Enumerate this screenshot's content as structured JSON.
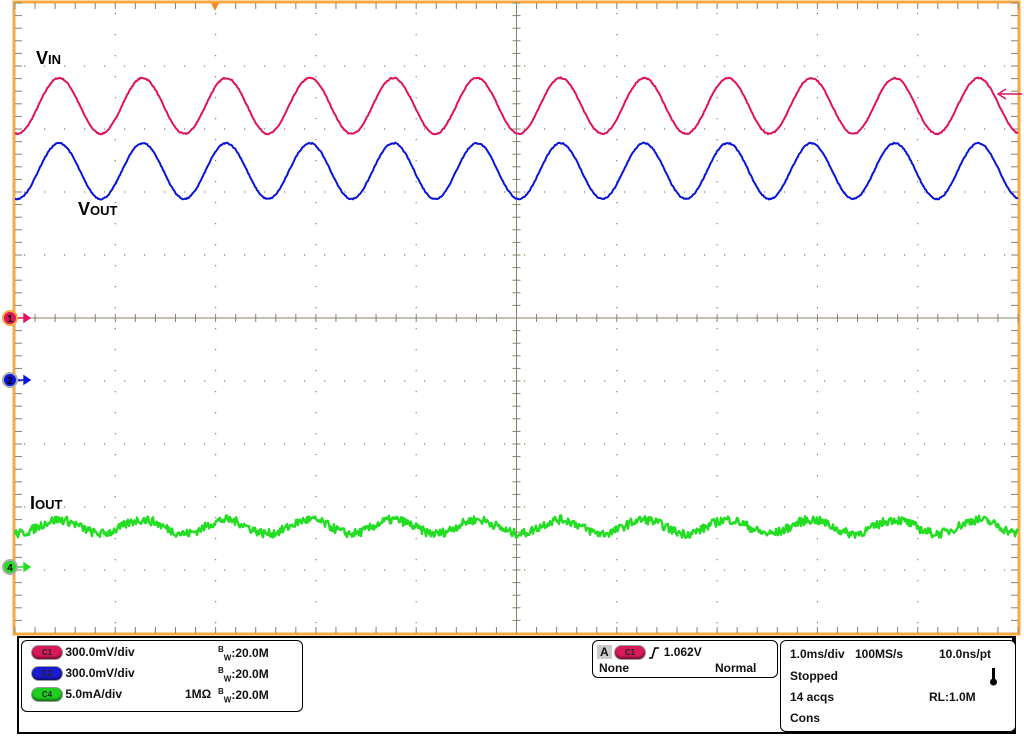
{
  "chart_data": {
    "type": "line",
    "title": "",
    "xlabel": "",
    "ylabel": "",
    "x_unit": "ms",
    "xlim": [
      -5,
      5
    ],
    "grid": true,
    "grid_divisions": {
      "horizontal": 10,
      "vertical": 10
    },
    "series": [
      {
        "name": "VIN",
        "name_main": "V",
        "name_sub": "IN",
        "channel": "1",
        "color": "#e0115f",
        "scale_per_div": 0.3,
        "unit": "V",
        "waveform": "sine",
        "offset": 1.01,
        "amplitude": 0.133,
        "frequency_hz": 1200,
        "peak_time_ms": -4.56,
        "noise": 0.003
      },
      {
        "name": "VOUT",
        "name_main": "V",
        "name_sub": "OUT",
        "channel": "2",
        "color": "#0a14d8",
        "scale_per_div": 0.3,
        "unit": "V",
        "waveform": "sine",
        "offset": 0.995,
        "amplitude": 0.133,
        "frequency_hz": 1200,
        "peak_time_ms": -4.56,
        "noise": 0.003
      },
      {
        "name": "IOUT",
        "name_main": "I",
        "name_sub": "OUT",
        "channel": "4",
        "color": "#22dd22",
        "scale_per_div": 5.0,
        "unit": "mA",
        "waveform": "sine",
        "offset": 3.2,
        "amplitude": 0.55,
        "frequency_hz": 1200,
        "peak_time_ms": -4.56,
        "noise": 0.35
      }
    ]
  },
  "colors": {
    "frame": "#f7a941",
    "grid": "#8a7f6a",
    "trigger_marker": "#f28a1c"
  },
  "channels_panel": {
    "rows": [
      {
        "tag": "C1",
        "color": "#d81a5a",
        "scale": "300.0mV/div",
        "impedance": "",
        "bw_label": "W",
        "bw_prefix": "B",
        "bw": ":20.0M"
      },
      {
        "tag": "C2",
        "color": "#1a1ad0",
        "scale": "300.0mV/div",
        "impedance": "",
        "bw_label": "W",
        "bw_prefix": "B",
        "bw": ":20.0M"
      },
      {
        "tag": "C4",
        "color": "#1fd01f",
        "scale": "5.0mA/div",
        "impedance": "1MΩ",
        "bw_label": "W",
        "bw_prefix": "B",
        "bw": ":20.0M"
      }
    ]
  },
  "trigger_panel": {
    "mode_letter": "A",
    "source": "C1",
    "slope_icon": "rising-edge",
    "level": "1.062V",
    "coupling": "None",
    "mode": "Normal"
  },
  "acquisition_panel": {
    "timebase": "1.0ms/div",
    "sample_rate": "100MS/s",
    "resolution": "10.0ns/pt",
    "state": "Stopped",
    "acqs": "14 acqs",
    "record_length": "RL:1.0M",
    "mode": "Cons",
    "thermometer_icon": "thermometer"
  }
}
